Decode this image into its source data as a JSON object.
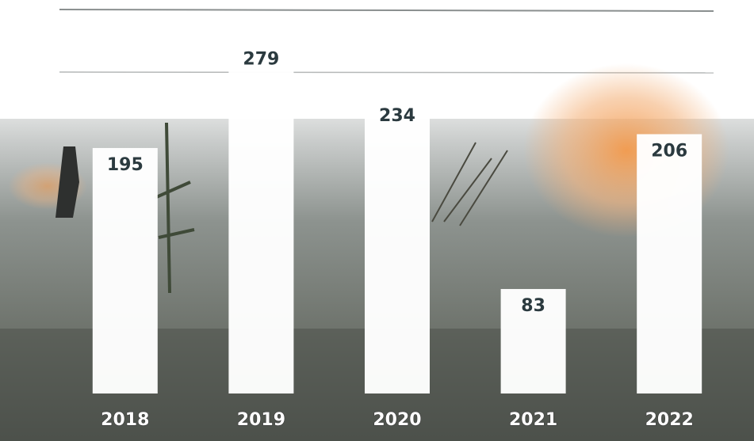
{
  "chart_data": {
    "type": "bar",
    "categories": [
      "2018",
      "2019",
      "2020",
      "2021",
      "2022"
    ],
    "values": [
      195,
      279,
      234,
      83,
      206
    ],
    "color": "#ffffff",
    "ylim": [
      0,
      300
    ]
  }
}
